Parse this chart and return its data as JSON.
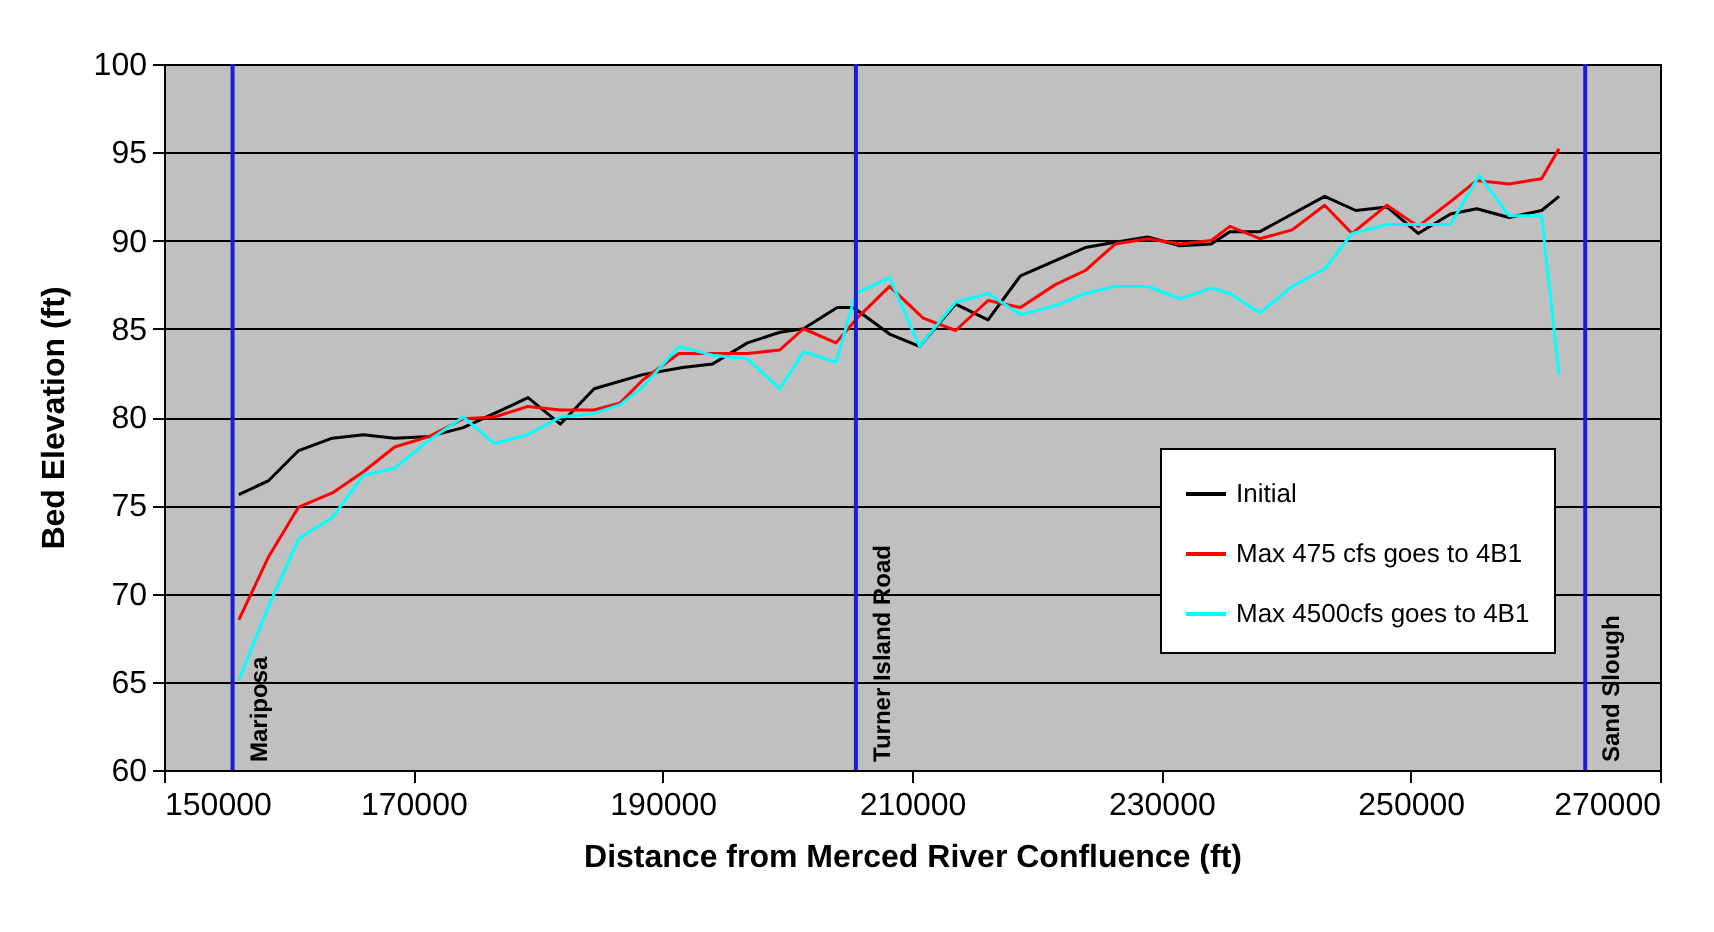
{
  "chart_data": {
    "type": "line",
    "xlabel": "Distance from Merced River Confluence (ft)",
    "ylabel": "Bed Elevation (ft)",
    "xlim": [
      150000,
      270000
    ],
    "xticks": [
      150000,
      170000,
      190000,
      210000,
      230000,
      250000,
      270000
    ],
    "ylim": [
      60,
      100
    ],
    "yticks": [
      60,
      65,
      70,
      75,
      80,
      85,
      90,
      95,
      100
    ],
    "grid": "y",
    "legend": "right",
    "marker": "none",
    "line_style": "solid",
    "series": [
      {
        "name": "Initial",
        "color": "#000000",
        "x": [
          156000,
          158400,
          160800,
          163500,
          166000,
          168500,
          171300,
          174000,
          176500,
          179200,
          181800,
          184500,
          188400,
          191600,
          194000,
          196800,
          199400,
          201300,
          204000,
          205300,
          208200,
          210600,
          213500,
          216100,
          218700,
          223900,
          226300,
          228900,
          231500,
          234000,
          235500,
          237900,
          240500,
          243100,
          245600,
          248100,
          250600,
          253200,
          255300,
          257900,
          260500,
          261900
        ],
        "values": [
          75.6,
          76.4,
          78.1,
          78.8,
          79.0,
          78.8,
          78.9,
          79.4,
          80.2,
          81.1,
          79.6,
          81.6,
          82.4,
          82.8,
          83.0,
          84.2,
          84.8,
          85.0,
          86.2,
          86.2,
          84.7,
          84.0,
          86.4,
          85.5,
          88.0,
          89.6,
          89.9,
          90.2,
          89.7,
          89.8,
          90.5,
          90.5,
          91.5,
          92.5,
          91.7,
          91.9,
          90.4,
          91.5,
          91.8,
          91.3,
          91.7,
          92.5
        ]
      },
      {
        "name": "Max 475 cfs goes to 4B1",
        "color": "#ff0000",
        "x": [
          156000,
          158400,
          160800,
          163500,
          166000,
          168500,
          171300,
          174000,
          176500,
          179200,
          181800,
          184500,
          186600,
          188400,
          191300,
          194000,
          196800,
          199400,
          201300,
          203900,
          205600,
          208200,
          210900,
          213500,
          216100,
          218700,
          221500,
          223900,
          226300,
          228900,
          231500,
          234000,
          235500,
          237900,
          240500,
          243100,
          245300,
          248100,
          250600,
          253200,
          255300,
          257900,
          260500,
          261900
        ],
        "values": [
          68.5,
          72.1,
          74.9,
          75.7,
          76.9,
          78.3,
          78.9,
          79.9,
          80.0,
          80.6,
          80.4,
          80.4,
          80.8,
          82.1,
          83.6,
          83.6,
          83.6,
          83.8,
          85.0,
          84.2,
          85.6,
          87.4,
          85.6,
          84.9,
          86.6,
          86.2,
          87.5,
          88.3,
          89.8,
          90.1,
          89.8,
          90.0,
          90.8,
          90.1,
          90.6,
          92.0,
          90.4,
          92.0,
          90.8,
          92.2,
          93.4,
          93.2,
          93.5,
          95.2
        ]
      },
      {
        "name": "Max 4500cfs goes to 4B1",
        "color": "#00ffff",
        "x": [
          156000,
          158400,
          160800,
          163500,
          166000,
          168500,
          171300,
          174000,
          176500,
          179200,
          181800,
          184500,
          186600,
          188400,
          191300,
          194000,
          196800,
          199400,
          201300,
          203900,
          205500,
          208200,
          210600,
          213500,
          216100,
          218700,
          221500,
          223900,
          226300,
          228900,
          231500,
          234000,
          235500,
          237900,
          240500,
          243100,
          245300,
          248100,
          250600,
          253200,
          255500,
          257900,
          260500,
          261900
        ],
        "values": [
          65.1,
          69.3,
          73.1,
          74.3,
          76.7,
          77.1,
          78.7,
          80.0,
          78.5,
          79.0,
          80.0,
          80.2,
          80.7,
          81.7,
          84.0,
          83.5,
          83.3,
          81.6,
          83.7,
          83.1,
          87.0,
          87.9,
          84.0,
          86.5,
          87.0,
          85.8,
          86.3,
          87.0,
          87.4,
          87.4,
          86.7,
          87.3,
          87.0,
          85.9,
          87.4,
          88.4,
          90.4,
          90.9,
          90.9,
          90.9,
          93.7,
          91.4,
          91.4,
          82.4
        ]
      }
    ],
    "ref_lines": [
      {
        "axis": "x",
        "value": 155500,
        "label": "Mariposa",
        "color": "#1c1cd8"
      },
      {
        "axis": "x",
        "value": 205500,
        "label": "Turner Island Road",
        "color": "#1c1cd8"
      },
      {
        "axis": "x",
        "value": 264000,
        "label": "Sand Slough",
        "color": "#1c1cd8"
      }
    ]
  }
}
